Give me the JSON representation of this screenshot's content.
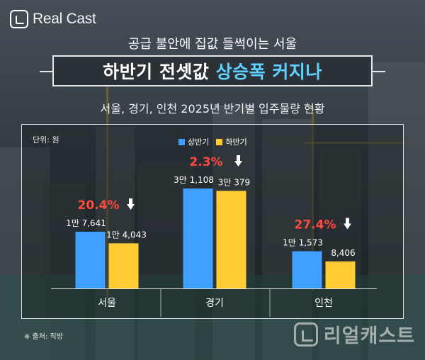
{
  "brand": {
    "logo_text": "Real Cast",
    "watermark_text": "리얼캐스트"
  },
  "header": {
    "subtitle": "공급 불안에 집값 들썩이는 서울",
    "title_part1": "하반기 전셋값",
    "title_part2": "상승폭 커지나",
    "caption": "서울, 경기, 인천 2025년 반기별 입주물량 현황"
  },
  "source": "※ 출처: 직방",
  "colors": {
    "first_half": "#3fa0ff",
    "second_half": "#ffcc33",
    "change": "#ff4a3d",
    "title_highlight": "#5fd0ff"
  },
  "icons": {
    "change_arrow": "down-arrow-icon"
  },
  "chart_data": {
    "type": "bar",
    "unit_label": "단위: 원",
    "categories": [
      "서울",
      "경기",
      "인천"
    ],
    "series": [
      {
        "name": "상반기",
        "values": [
          17641,
          31108,
          11573
        ],
        "labels": [
          "1만 7,641",
          "3만 1,108",
          "1만 1,573"
        ]
      },
      {
        "name": "하반기",
        "values": [
          14043,
          30379,
          8406
        ],
        "labels": [
          "1만 4,043",
          "3만 379",
          "8,406"
        ]
      }
    ],
    "changes": [
      "20.4%",
      "2.3%",
      "27.4%"
    ],
    "ylim": [
      0,
      34000
    ],
    "legend": "top-center",
    "grid": false
  }
}
